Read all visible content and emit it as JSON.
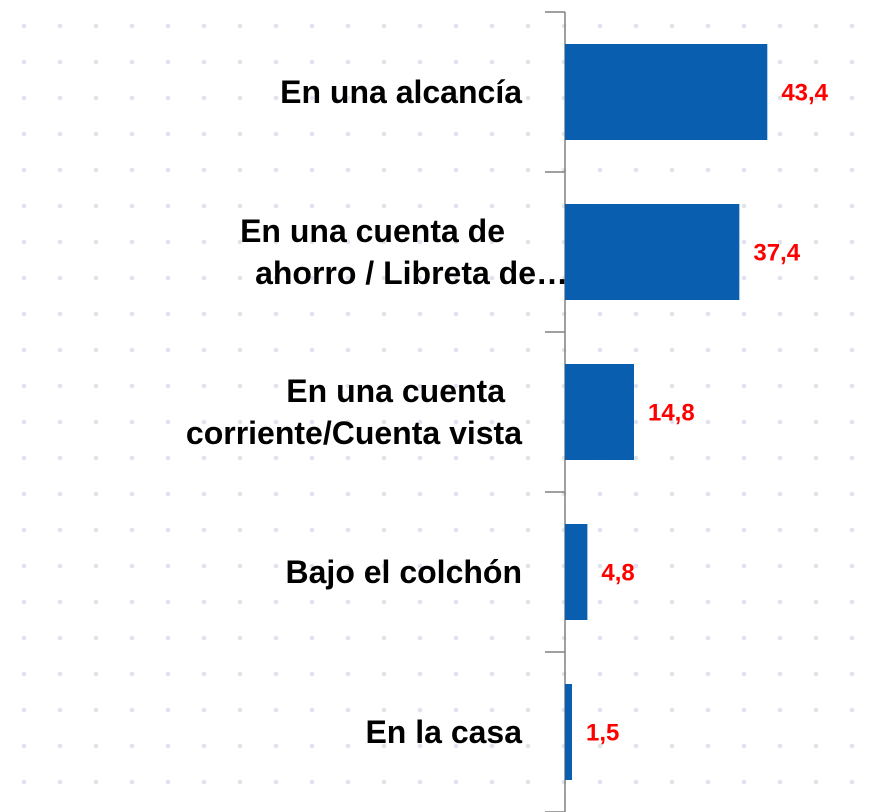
{
  "chart_data": {
    "type": "barh",
    "categories": [
      "En una alcancía",
      "En una cuenta de\nahorro / Libreta de…",
      "En una cuenta\ncorriente/Cuenta vista",
      "Bajo el colchón",
      "En la casa"
    ],
    "values": [
      43.4,
      37.4,
      14.8,
      4.8,
      1.5
    ],
    "value_labels": [
      "43,4",
      "37,4",
      "14,8",
      "4,8",
      "1,5"
    ],
    "color": "#0a5eb0",
    "label_color": "#ff0000",
    "xlim": [
      0,
      66.5
    ]
  }
}
